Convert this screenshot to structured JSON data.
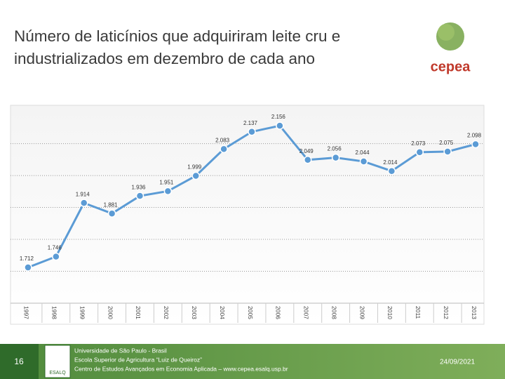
{
  "header": {
    "title": "Número de laticínios que adquiriram leite cru e industrializados em dezembro de cada ano"
  },
  "logo": {
    "name": "cepea"
  },
  "footer": {
    "page": "16",
    "logo_text": "ESALQ",
    "lines": [
      "Universidade de São Paulo - Brasil",
      "Escola Superior de Agricultura “Luiz de Queiroz”",
      "Centro de Estudos Avançados em Economia Aplicada – www.cepea.esalq.usp.br"
    ],
    "date": "24/09/2021"
  },
  "chart_data": {
    "type": "line",
    "categories": [
      "1997",
      "1998",
      "1999",
      "2000",
      "2001",
      "2002",
      "2003",
      "2004",
      "2005",
      "2006",
      "2007",
      "2008",
      "2009",
      "2010",
      "2011",
      "2012",
      "2013"
    ],
    "values": [
      1712,
      1746,
      1914,
      1881,
      1936,
      1951,
      1999,
      2083,
      2137,
      2156,
      2049,
      2056,
      2044,
      2014,
      2073,
      2075,
      2098
    ],
    "value_labels": [
      "1.712",
      "1.746",
      "1.914",
      "1.881",
      "1.936",
      "1.951",
      "1.999",
      "2.083",
      "2.137",
      "2.156",
      "2.049",
      "2.056",
      "2.044",
      "2.014",
      "2.073",
      "2.075",
      "2.098"
    ],
    "color": "#5b9bd5",
    "ylim": [
      1600,
      2220
    ],
    "yticks": [
      1700,
      1800,
      1900,
      2000,
      2100
    ],
    "grid": true
  }
}
